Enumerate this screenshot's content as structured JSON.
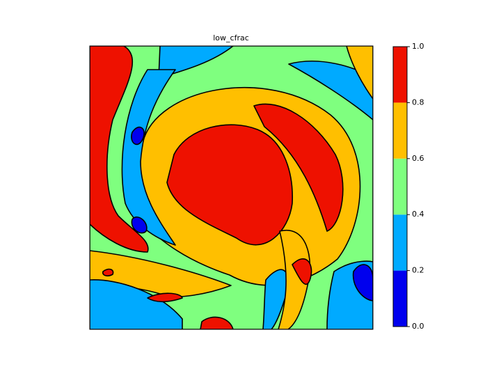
{
  "chart_data": {
    "type": "contourf",
    "title": "low_cfrac",
    "levels": [
      {
        "value": 0,
        "label": "0.0"
      },
      0.2,
      0.4,
      0.6,
      0.8,
      {
        "value": 1,
        "label": "1.0"
      }
    ],
    "colors": [
      "#0000ee",
      "#00aaff",
      "#7fff7f",
      "#ffbf00",
      "#ee1100"
    ]
  }
}
